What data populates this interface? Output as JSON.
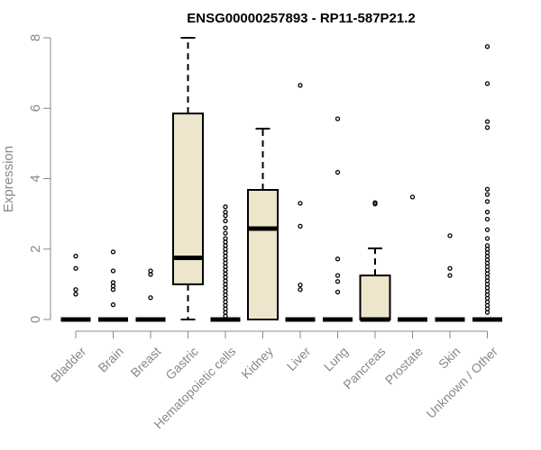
{
  "chart_data": {
    "type": "boxplot",
    "title": "ENSG00000257893 - RP11-587P21.2",
    "ylabel": "Expression",
    "xlabel": "",
    "ylim": [
      0,
      8
    ],
    "yticks": [
      0,
      2,
      4,
      6,
      8
    ],
    "box_fill": "#ede6cc",
    "axis_color": "#888888",
    "categories": [
      "Bladder",
      "Brain",
      "Breast",
      "Gastric",
      "Hematopoietic cells",
      "Kidney",
      "Liver",
      "Lung",
      "Pancreas",
      "Prostate",
      "Skin",
      "Unknown / Other"
    ],
    "boxes": [
      {
        "category": "Bladder",
        "min": 0,
        "q1": 0,
        "median": 0,
        "q3": 0,
        "max": 0,
        "outliers": [
          0.72,
          0.85,
          1.45,
          1.8
        ]
      },
      {
        "category": "Brain",
        "min": 0,
        "q1": 0,
        "median": 0,
        "q3": 0,
        "max": 0,
        "outliers": [
          0.42,
          0.85,
          0.95,
          1.05,
          1.38,
          1.92
        ]
      },
      {
        "category": "Breast",
        "min": 0,
        "q1": 0,
        "median": 0,
        "q3": 0,
        "max": 0,
        "outliers": [
          0.62,
          1.28,
          1.38
        ]
      },
      {
        "category": "Gastric",
        "min": 0,
        "q1": 1.0,
        "median": 1.75,
        "q3": 5.85,
        "max": 8.0,
        "outliers": []
      },
      {
        "category": "Hematopoietic cells",
        "min": 0,
        "q1": 0,
        "median": 0,
        "q3": 0,
        "max": 0,
        "outliers": [
          0.1,
          0.2,
          0.3,
          0.4,
          0.5,
          0.6,
          0.7,
          0.8,
          0.9,
          1.0,
          1.1,
          1.2,
          1.3,
          1.4,
          1.5,
          1.6,
          1.7,
          1.8,
          1.9,
          2.0,
          2.1,
          2.2,
          2.3,
          2.45,
          2.6,
          2.8,
          2.95,
          3.05,
          3.2
        ]
      },
      {
        "category": "Kidney",
        "min": 0,
        "q1": 0,
        "median": 2.58,
        "q3": 3.68,
        "max": 5.42,
        "outliers": []
      },
      {
        "category": "Liver",
        "min": 0,
        "q1": 0,
        "median": 0,
        "q3": 0,
        "max": 0,
        "outliers": [
          0.85,
          0.98,
          2.65,
          3.3,
          6.65
        ]
      },
      {
        "category": "Lung",
        "min": 0,
        "q1": 0,
        "median": 0,
        "q3": 0,
        "max": 0,
        "outliers": [
          0.78,
          1.08,
          1.25,
          1.72,
          4.18,
          5.7
        ]
      },
      {
        "category": "Pancreas",
        "min": 0,
        "q1": 0,
        "median": 0,
        "q3": 1.25,
        "max": 2.02,
        "outliers": [
          3.28,
          3.32
        ]
      },
      {
        "category": "Prostate",
        "min": 0,
        "q1": 0,
        "median": 0,
        "q3": 0,
        "max": 0,
        "outliers": [
          3.48
        ]
      },
      {
        "category": "Skin",
        "min": 0,
        "q1": 0,
        "median": 0,
        "q3": 0,
        "max": 0,
        "outliers": [
          1.25,
          1.45,
          2.38
        ]
      },
      {
        "category": "Unknown / Other",
        "min": 0,
        "q1": 0,
        "median": 0,
        "q3": 0,
        "max": 0,
        "outliers": [
          0.2,
          0.3,
          0.4,
          0.5,
          0.6,
          0.7,
          0.8,
          0.9,
          1.0,
          1.1,
          1.2,
          1.3,
          1.4,
          1.5,
          1.6,
          1.7,
          1.8,
          1.9,
          2.0,
          2.1,
          2.3,
          2.55,
          2.85,
          3.05,
          3.35,
          3.55,
          3.7,
          5.45,
          5.62,
          6.7,
          7.75
        ]
      }
    ]
  }
}
